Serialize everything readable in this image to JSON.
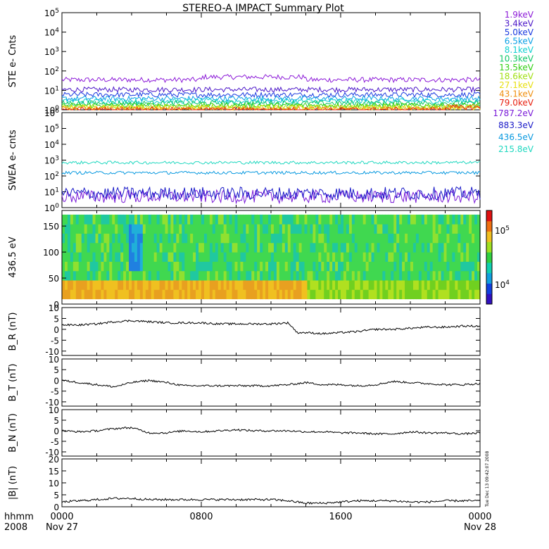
{
  "title": "STEREO-A IMPACT Summary Plot",
  "x_axis": {
    "tick_labels": [
      "0000",
      "0800",
      "1600",
      "0000"
    ],
    "date_labels": [
      "Nov 27",
      "Nov 28"
    ],
    "format_label": "hhmm",
    "year_label": "2008",
    "range_hours": [
      0,
      24
    ]
  },
  "side_stamp": "Tue Dec 13 09:42:07 2008",
  "chart_data": [
    {
      "type": "line",
      "panel": "ste",
      "ylabel": "STE e- Cnts",
      "yscale": "log",
      "ylim": [
        1,
        100000
      ],
      "y_ticks": [
        1,
        10,
        100,
        1000,
        10000,
        100000
      ],
      "series": [
        {
          "name": "1.9keV",
          "color": "#8c1ad8",
          "level": 35
        },
        {
          "name": "3.4keV",
          "color": "#4b16c8",
          "level": 11
        },
        {
          "name": "5.0keV",
          "color": "#1a3ae0",
          "level": 6
        },
        {
          "name": "6.5keV",
          "color": "#0aa0e6",
          "level": 3.8
        },
        {
          "name": "8.1keV",
          "color": "#0fd0d0",
          "level": 2.8
        },
        {
          "name": "10.3keV",
          "color": "#10c868",
          "level": 2.2
        },
        {
          "name": "13.5keV",
          "color": "#30d010",
          "level": 1.7
        },
        {
          "name": "18.6keV",
          "color": "#a0e010",
          "level": 1.4
        },
        {
          "name": "27.1keV",
          "color": "#e8e010",
          "level": 1.25
        },
        {
          "name": "43.1keV",
          "color": "#f09010",
          "level": 1.1
        },
        {
          "name": "79.0keV",
          "color": "#e82010",
          "level": 1.0
        }
      ]
    },
    {
      "type": "line",
      "panel": "swea",
      "ylabel": "SWEA e- cnts",
      "yscale": "log",
      "ylim": [
        1,
        1000000
      ],
      "y_ticks": [
        1,
        10,
        100,
        1000,
        10000,
        100000,
        1000000
      ],
      "series": [
        {
          "name": "1787.2eV",
          "color": "#7a1ad8",
          "level": 5
        },
        {
          "name": "883.3eV",
          "color": "#1a1ac8",
          "level": 8
        },
        {
          "name": "436.5eV",
          "color": "#0a9ae0",
          "level": 160
        },
        {
          "name": "215.8eV",
          "color": "#20d8c0",
          "level": 700
        }
      ]
    },
    {
      "type": "heatmap",
      "panel": "pad",
      "ylabel": "436.5 eV",
      "ylim": [
        0,
        180
      ],
      "y_ticks": [
        0,
        50,
        100,
        150
      ],
      "colorbar": {
        "ticks": [
          "10^4",
          "10^5"
        ],
        "scale": "log"
      }
    },
    {
      "type": "line",
      "panel": "br",
      "ylabel": "B_R (nT)",
      "ylim": [
        -12,
        10
      ],
      "y_ticks": [
        -10,
        -5,
        0,
        5,
        10
      ],
      "x": [
        0,
        1,
        2,
        3,
        4,
        5,
        6,
        7,
        8,
        9,
        10,
        11,
        12,
        13,
        13.5,
        14,
        15,
        16,
        17,
        18,
        19,
        20,
        21,
        22,
        23,
        24
      ],
      "y": [
        2,
        2,
        2.5,
        3.5,
        4,
        3.5,
        3,
        3,
        3,
        2.5,
        2.5,
        2.5,
        2.5,
        3,
        -1.5,
        -1.5,
        -2,
        -1.5,
        -1,
        0,
        0,
        0.5,
        1,
        1,
        1.5,
        1.5
      ]
    },
    {
      "type": "line",
      "panel": "bt",
      "ylabel": "B_T (nT)",
      "ylim": [
        -12,
        10
      ],
      "y_ticks": [
        -10,
        -5,
        0,
        5,
        10
      ],
      "x": [
        0,
        1,
        2,
        3,
        4,
        5,
        6,
        7,
        8,
        9,
        10,
        11,
        12,
        13,
        14,
        15,
        16,
        17,
        18,
        19,
        20,
        21,
        22,
        23,
        24
      ],
      "y": [
        0,
        -1,
        -2,
        -3,
        -1,
        0,
        -1,
        -2.5,
        -2.5,
        -2.5,
        -2.5,
        -2.5,
        -2.5,
        -2,
        -1,
        -2,
        -2,
        -2.5,
        -2,
        -0.5,
        -1,
        -1.5,
        -2,
        -2,
        -1.5
      ]
    },
    {
      "type": "line",
      "panel": "bn",
      "ylabel": "B_N (nT)",
      "ylim": [
        -12,
        10
      ],
      "y_ticks": [
        -10,
        -5,
        0,
        5,
        10
      ],
      "x": [
        0,
        1,
        2,
        3,
        4,
        5,
        6,
        7,
        8,
        9,
        10,
        11,
        12,
        13,
        14,
        15,
        16,
        17,
        18,
        19,
        20,
        21,
        22,
        23,
        24
      ],
      "y": [
        0,
        -0.5,
        0,
        1,
        1.5,
        -1,
        -1,
        0,
        -0.5,
        0,
        0.5,
        0,
        0,
        0,
        -0.5,
        -0.5,
        -1,
        -1,
        -1.5,
        -1.5,
        -0.5,
        -1,
        -1,
        -1.5,
        -1
      ]
    },
    {
      "type": "line",
      "panel": "bmag",
      "ylabel": "|B| (nT)",
      "ylim": [
        0,
        20
      ],
      "y_ticks": [
        0,
        5,
        10,
        15,
        20
      ],
      "x": [
        0,
        1,
        2,
        3,
        4,
        5,
        6,
        7,
        8,
        9,
        10,
        11,
        12,
        13,
        14,
        15,
        16,
        17,
        18,
        19,
        20,
        21,
        22,
        23,
        24
      ],
      "y": [
        2,
        2.5,
        3,
        3.5,
        3.5,
        3,
        3,
        3,
        3,
        3,
        3,
        3,
        3,
        2.5,
        1.5,
        1.5,
        2,
        2.5,
        2.5,
        2.5,
        2,
        2,
        2.5,
        2.5,
        2.5
      ]
    }
  ]
}
